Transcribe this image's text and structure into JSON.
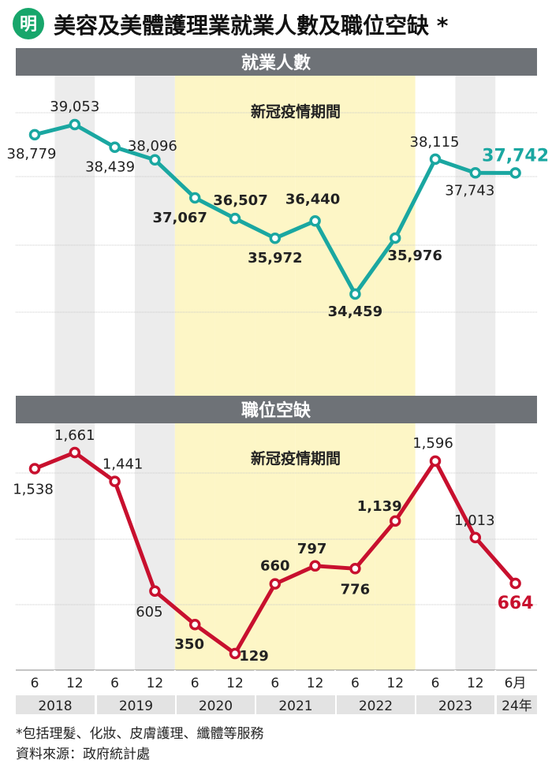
{
  "header": {
    "logo_text": "明",
    "title": "美容及美體護理業就業人數及職位空缺 *"
  },
  "colors": {
    "employment_line": "#1aa7a1",
    "vacancy_line": "#c8102e",
    "covid_band": "#fdf6c6",
    "alt_band": "#ececec",
    "section_bar": "#6e7277",
    "logo_green": "#17a66b"
  },
  "chart_data": [
    {
      "type": "line",
      "title": "就業人數",
      "annotation": "新冠疫情期間",
      "categories": [
        "6",
        "12",
        "6",
        "12",
        "6",
        "12",
        "6",
        "12",
        "6",
        "12",
        "6",
        "12",
        "6月"
      ],
      "years": [
        "2018",
        "2019",
        "2020",
        "2021",
        "2022",
        "2023",
        "24年"
      ],
      "values": [
        38779,
        39053,
        38439,
        38096,
        37067,
        36507,
        35972,
        36440,
        34459,
        35976,
        38115,
        37743,
        37742
      ],
      "labels": [
        "38,779",
        "39,053",
        "38,439",
        "38,096",
        "37,067",
        "36,507",
        "35,972",
        "36,440",
        "34,459",
        "35,976",
        "38,115",
        "37,743",
        "37,742"
      ],
      "grid": true,
      "highlight_last": true
    },
    {
      "type": "line",
      "title": "職位空缺",
      "annotation": "新冠疫情期間",
      "categories": [
        "6",
        "12",
        "6",
        "12",
        "6",
        "12",
        "6",
        "12",
        "6",
        "12",
        "6",
        "12",
        "6月"
      ],
      "years": [
        "2018",
        "2019",
        "2020",
        "2021",
        "2022",
        "2023",
        "24年"
      ],
      "values": [
        1538,
        1661,
        1441,
        605,
        350,
        129,
        660,
        797,
        776,
        1139,
        1596,
        1013,
        664
      ],
      "labels": [
        "1,538",
        "1,661",
        "1,441",
        "605",
        "350",
        "129",
        "660",
        "797",
        "776",
        "1,139",
        "1,596",
        "1,013",
        "664"
      ],
      "grid": true,
      "highlight_last": true
    }
  ],
  "footer": {
    "note": "*包括理髮、化妝、皮膚護理、纖體等服務",
    "source": "資料來源：政府統計處"
  }
}
